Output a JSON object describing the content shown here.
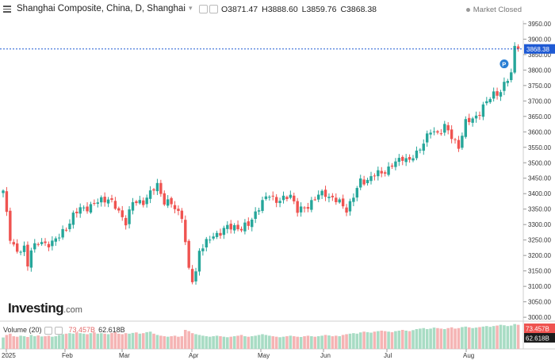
{
  "header": {
    "title": "Shanghai Composite, China, D, Shanghai",
    "open": "O3871.47",
    "high": "H3888.60",
    "low": "L3859.76",
    "close": "C3868.38",
    "status": "Market Closed"
  },
  "logo": {
    "name": "Investing",
    "suffix": ".com"
  },
  "volume": {
    "label": "Volume (20)",
    "v1": "73.457B",
    "v2": "62.618B"
  },
  "price_tag": "3868.38",
  "volume_tags": [
    "73.457B",
    "62.618B"
  ],
  "colors": {
    "up": "#26a69a",
    "down": "#ef5350",
    "up_vol": "#a8dcc4",
    "down_vol": "#f5b4b4",
    "price_line": "#1e5ad4"
  },
  "chart_data": {
    "type": "candlestick",
    "y_ticks": [
      3000,
      3050,
      3100,
      3150,
      3200,
      3250,
      3300,
      3350,
      3400,
      3450,
      3500,
      3550,
      3600,
      3650,
      3700,
      3750,
      3800,
      3850,
      3900,
      3950
    ],
    "y_tick_labels": [
      "3000.00",
      "3050.00",
      "3100.00",
      "3150.00",
      "3200.00",
      "3250.00",
      "3300.00",
      "3350.00",
      "3400.00",
      "3450.00",
      "3500.00",
      "3550.00",
      "3600.00",
      "3650.00",
      "3700.00",
      "3750.00",
      "3800.00",
      "3850.00",
      "3900.00",
      "3950.00"
    ],
    "x_labels": [
      "2025",
      "Feb",
      "Mar",
      "Apr",
      "May",
      "Jun",
      "Jul",
      "Aug"
    ],
    "ylim": [
      2990,
      3960
    ],
    "last_price": 3868.38,
    "marker": "P",
    "close_anchors": [
      [
        0,
        3405
      ],
      [
        2,
        3260
      ],
      [
        4,
        3210
      ],
      [
        6,
        3220
      ],
      [
        7,
        3170
      ],
      [
        8,
        3225
      ],
      [
        10,
        3240
      ],
      [
        12,
        3235
      ],
      [
        14,
        3245
      ],
      [
        16,
        3260
      ],
      [
        18,
        3290
      ],
      [
        20,
        3330
      ],
      [
        22,
        3350
      ],
      [
        25,
        3360
      ],
      [
        28,
        3380
      ],
      [
        30,
        3385
      ],
      [
        33,
        3340
      ],
      [
        35,
        3310
      ],
      [
        37,
        3370
      ],
      [
        40,
        3375
      ],
      [
        42,
        3400
      ],
      [
        44,
        3430
      ],
      [
        46,
        3375
      ],
      [
        48,
        3365
      ],
      [
        50,
        3340
      ],
      [
        51,
        3330
      ],
      [
        53,
        3150
      ],
      [
        54,
        3120
      ],
      [
        55,
        3145
      ],
      [
        56,
        3220
      ],
      [
        58,
        3240
      ],
      [
        60,
        3265
      ],
      [
        62,
        3275
      ],
      [
        64,
        3290
      ],
      [
        66,
        3295
      ],
      [
        68,
        3285
      ],
      [
        70,
        3300
      ],
      [
        72,
        3340
      ],
      [
        74,
        3370
      ],
      [
        76,
        3400
      ],
      [
        78,
        3375
      ],
      [
        80,
        3380
      ],
      [
        82,
        3400
      ],
      [
        84,
        3345
      ],
      [
        86,
        3350
      ],
      [
        88,
        3375
      ],
      [
        90,
        3395
      ],
      [
        92,
        3400
      ],
      [
        94,
        3385
      ],
      [
        96,
        3370
      ],
      [
        98,
        3350
      ],
      [
        100,
        3390
      ],
      [
        102,
        3440
      ],
      [
        104,
        3445
      ],
      [
        106,
        3460
      ],
      [
        108,
        3470
      ],
      [
        110,
        3480
      ],
      [
        112,
        3500
      ],
      [
        114,
        3520
      ],
      [
        116,
        3505
      ],
      [
        118,
        3530
      ],
      [
        120,
        3570
      ],
      [
        122,
        3600
      ],
      [
        124,
        3595
      ],
      [
        126,
        3620
      ],
      [
        128,
        3580
      ],
      [
        130,
        3555
      ],
      [
        132,
        3630
      ],
      [
        134,
        3640
      ],
      [
        136,
        3665
      ],
      [
        138,
        3695
      ],
      [
        140,
        3725
      ],
      [
        142,
        3730
      ],
      [
        144,
        3770
      ],
      [
        145,
        3790
      ],
      [
        146,
        3880
      ],
      [
        147,
        3868
      ]
    ],
    "volume_levels": [
      0.45,
      0.55,
      0.6,
      0.5,
      0.48,
      0.52,
      0.5,
      0.47,
      0.55,
      0.5,
      0.53,
      0.49,
      0.5,
      0.52,
      0.48,
      0.5,
      0.55,
      0.58,
      0.6,
      0.62,
      0.6,
      0.65,
      0.62,
      0.6,
      0.58,
      0.62,
      0.65,
      0.6,
      0.62,
      0.6,
      0.58,
      0.63,
      0.66,
      0.6,
      0.58,
      0.62,
      0.6,
      0.63,
      0.65,
      0.6,
      0.62,
      0.66,
      0.68,
      0.6,
      0.55,
      0.52,
      0.5,
      0.48,
      0.5,
      0.52,
      0.48,
      0.5,
      0.75,
      0.7,
      0.62,
      0.58,
      0.55,
      0.52,
      0.5,
      0.48,
      0.5,
      0.52,
      0.5,
      0.48,
      0.46,
      0.48,
      0.5,
      0.52,
      0.55,
      0.5,
      0.48,
      0.5,
      0.52,
      0.55,
      0.58,
      0.55,
      0.52,
      0.5,
      0.48,
      0.46,
      0.48,
      0.5,
      0.52,
      0.5,
      0.48,
      0.47,
      0.5,
      0.52,
      0.5,
      0.48,
      0.5,
      0.52,
      0.55,
      0.53,
      0.5,
      0.52,
      0.5,
      0.55,
      0.58,
      0.6,
      0.62,
      0.6,
      0.65,
      0.68,
      0.66,
      0.64,
      0.68,
      0.7,
      0.72,
      0.7,
      0.68,
      0.66,
      0.7,
      0.72,
      0.75,
      0.72,
      0.7,
      0.74,
      0.78,
      0.8,
      0.82,
      0.78,
      0.8,
      0.84,
      0.82,
      0.8,
      0.78,
      0.82,
      0.85,
      0.8,
      0.82,
      0.86,
      0.88,
      0.85,
      0.82,
      0.84,
      0.86,
      0.88,
      0.9,
      0.87,
      0.9,
      0.92,
      0.95,
      0.93,
      0.9,
      0.92,
      0.98,
      0.95
    ]
  }
}
